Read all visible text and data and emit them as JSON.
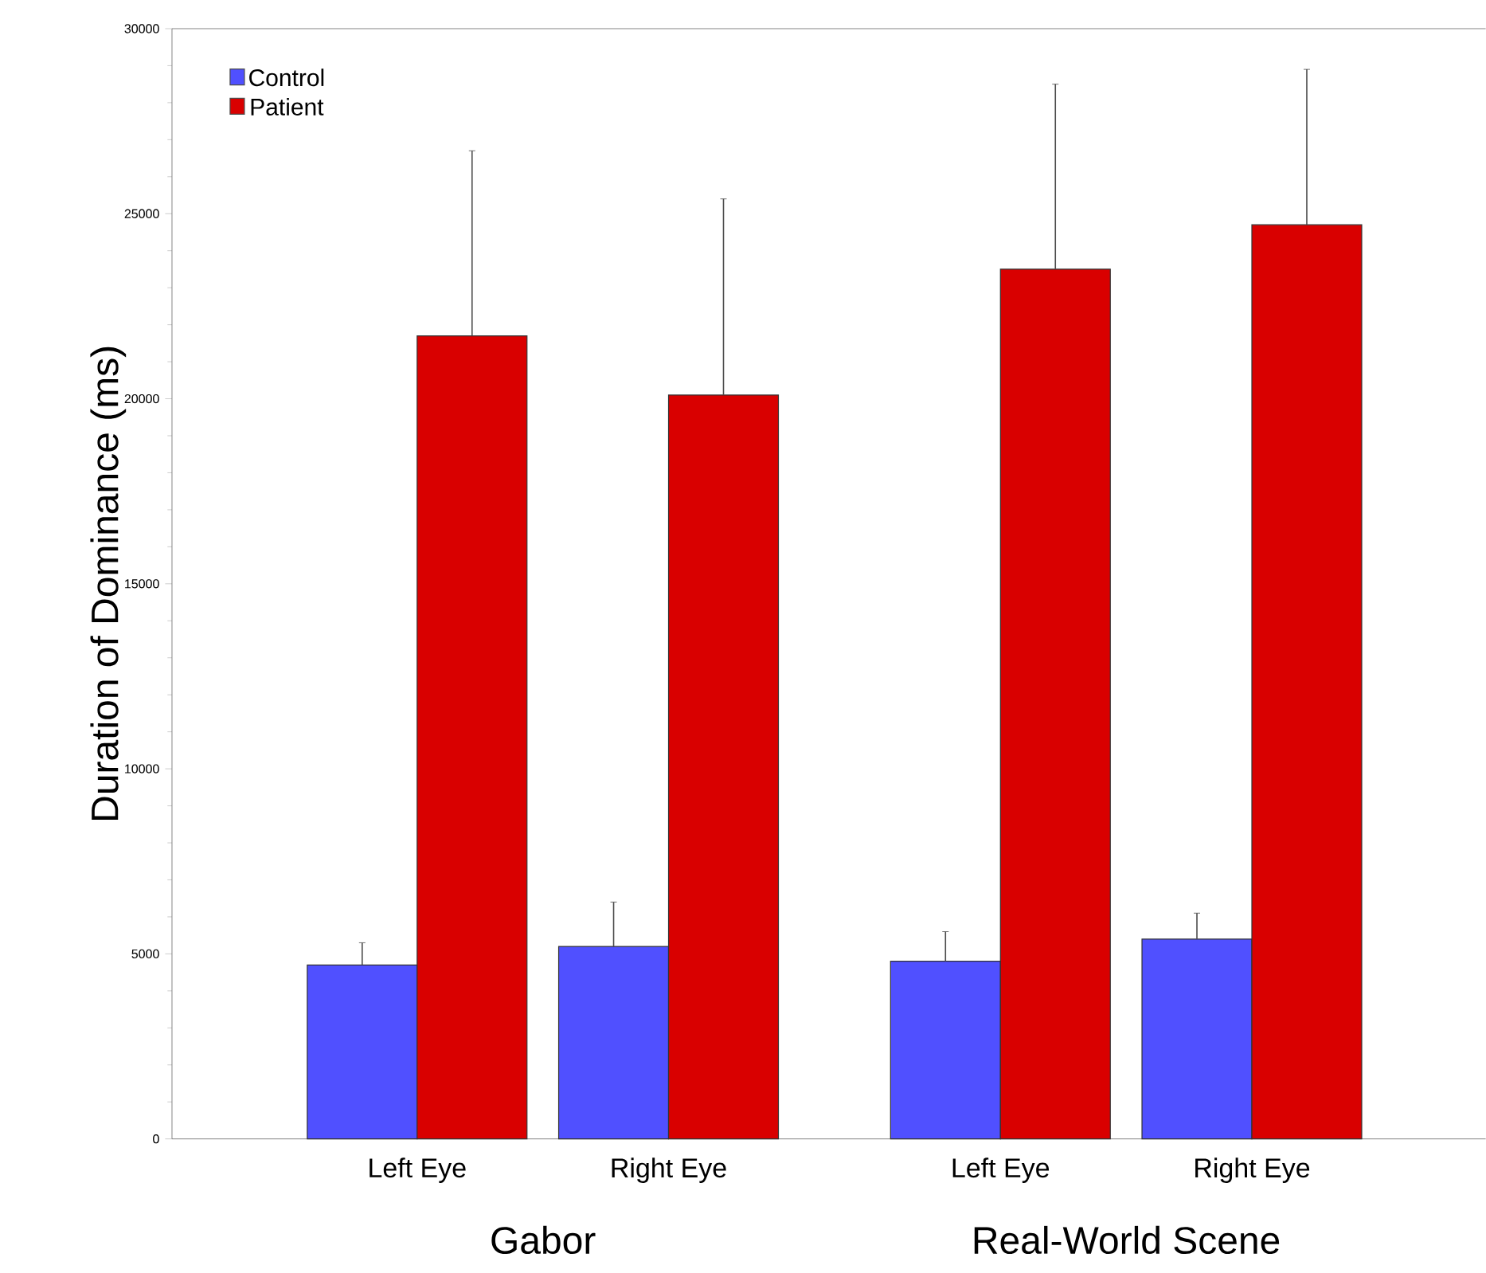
{
  "chart_data": {
    "type": "bar",
    "ylabel": "Duration of Dominance (ms)",
    "categories": [
      "Left Eye",
      "Right Eye",
      "Left Eye",
      "Right Eye"
    ],
    "series": [
      {
        "name": "Control",
        "color": "#5050ff",
        "values": [
          4700,
          5200,
          4800,
          5400
        ],
        "errors": [
          [
            4700,
            5300
          ],
          [
            5200,
            6400
          ],
          [
            4800,
            5600
          ],
          [
            5400,
            6100
          ]
        ]
      },
      {
        "name": "Patient",
        "color": "#d90000",
        "values": [
          21700,
          20100,
          23500,
          24700
        ],
        "errors": [
          [
            21700,
            26700
          ],
          [
            20100,
            25400
          ],
          [
            23500,
            28500
          ],
          [
            24700,
            28900
          ]
        ]
      }
    ],
    "annotations": [
      "Gabor",
      "Real-World Scene"
    ],
    "ylim": [
      0,
      30000
    ],
    "yticks": [
      0,
      5000,
      10000,
      15000,
      20000,
      25000,
      30000
    ],
    "legend": "top left",
    "grid": false
  }
}
